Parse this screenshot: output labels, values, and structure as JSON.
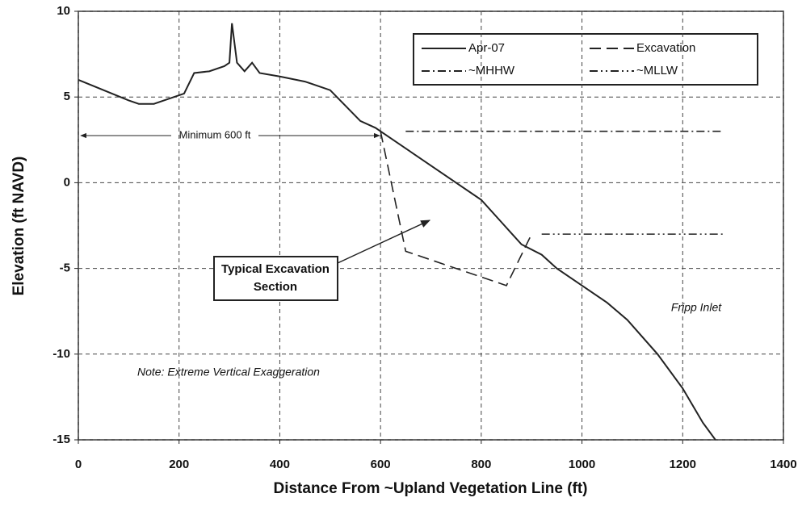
{
  "chart_data": {
    "type": "line",
    "xlabel": "Distance From ~Upland Vegetation Line (ft)",
    "ylabel": "Elevation (ft NAVD)",
    "xlim": [
      0,
      1400
    ],
    "xticks": [
      0,
      200,
      400,
      600,
      800,
      1000,
      1200,
      1400
    ],
    "ylim": [
      -15,
      10
    ],
    "yticks": [
      -15,
      -10,
      -5,
      0,
      5,
      10
    ],
    "grid": true,
    "legend": "upper right",
    "series": [
      {
        "name": "Apr-07",
        "color": "#222222",
        "line_style": "solid",
        "x": [
          0,
          50,
          100,
          120,
          150,
          190,
          210,
          230,
          260,
          290,
          300,
          305,
          315,
          330,
          345,
          360,
          400,
          450,
          500,
          530,
          560,
          590,
          600,
          700,
          800,
          840,
          880,
          920,
          950,
          1000,
          1050,
          1090,
          1150,
          1200,
          1240,
          1265
        ],
        "values": [
          6,
          5.4,
          4.8,
          4.6,
          4.6,
          5,
          5.2,
          6.4,
          6.5,
          6.8,
          7,
          9.3,
          7,
          6.5,
          7,
          6.4,
          6.2,
          5.9,
          5.4,
          4.5,
          3.6,
          3.2,
          3,
          1,
          -1,
          -2.3,
          -3.6,
          -4.2,
          -5,
          -6,
          -7,
          -8,
          -10,
          -12,
          -14,
          -15
        ]
      },
      {
        "name": "Excavation",
        "color": "#222222",
        "line_style": "dashed",
        "x": [
          600,
          650,
          850,
          900
        ],
        "values": [
          3,
          -4,
          -6,
          -3
        ]
      },
      {
        "name": "~MHHW",
        "color": "#222222",
        "line_style": "dashdot",
        "x": [
          650,
          1280
        ],
        "values": [
          3,
          3
        ]
      },
      {
        "name": "~MLLW",
        "color": "#222222",
        "line_style": "dashdotdot",
        "x": [
          920,
          1280
        ],
        "values": [
          -3,
          -3
        ]
      }
    ],
    "annotations": [
      "Minimum 600 ft",
      "Typical Excavation",
      "Section",
      "Fripp Inlet",
      "Note: Extreme Vertical Exaggeration"
    ]
  }
}
